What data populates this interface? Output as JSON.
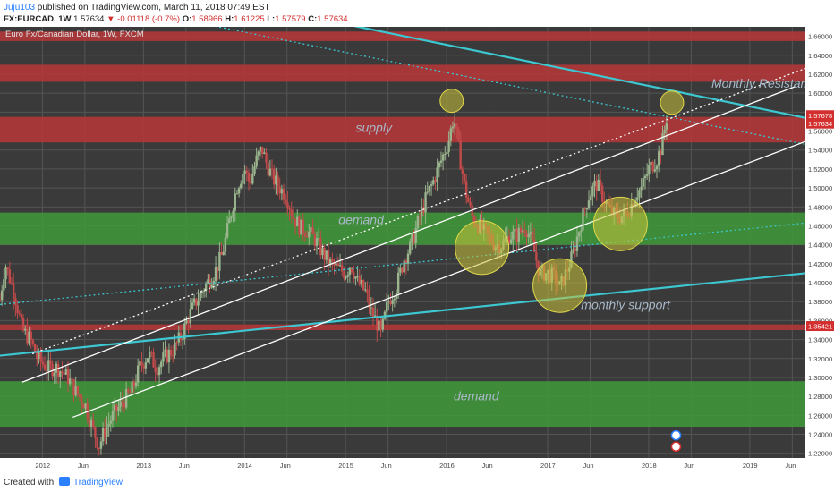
{
  "header": {
    "author": "Juju103",
    "published_text": " published on TradingView.com, March 11, 2018 07:49 EST",
    "symbol": "FX:EURCAD, 1W",
    "last": "1.57634",
    "change_arrow": "▼",
    "change": "-0.01118 (-0.7%)",
    "open_label": "O:",
    "open": "1.58966",
    "high_label": "H:",
    "high": "1.61225",
    "low_label": "L:",
    "low": "1.57579",
    "close_label": "C:",
    "close": "1.57634"
  },
  "chart_title": "Euro Fx/Canadian Dollar, 1W, FXCM",
  "footer": {
    "created_with": "Created with",
    "brand": "TradingView"
  },
  "colors": {
    "background": "#3a3a3a",
    "supply_zone": "#b8373a",
    "demand_zone": "#3f9b3a",
    "trendline": "#3cc7d1",
    "channel": "#ffffff",
    "candle_up": "#9ab58e",
    "candle_down": "#c24a4a",
    "circle": "#c9c23a"
  },
  "chart_data": {
    "type": "candlestick",
    "symbol": "FX:EURCAD",
    "timeframe": "1W",
    "ylim": [
      1.215,
      1.67
    ],
    "xlim": [
      2011.58,
      2019.55
    ],
    "y_ticks": [
      "1.66000",
      "1.64000",
      "1.62000",
      "1.60000",
      "1.58000",
      "1.56000",
      "1.54000",
      "1.52000",
      "1.50000",
      "1.48000",
      "1.46000",
      "1.44000",
      "1.42000",
      "1.40000",
      "1.38000",
      "1.36000",
      "1.34000",
      "1.32000",
      "1.30000",
      "1.28000",
      "1.26000",
      "1.24000",
      "1.22000"
    ],
    "x_ticks": [
      {
        "label": "2012",
        "t": 2012.0
      },
      {
        "label": "Jun",
        "t": 2012.42
      },
      {
        "label": "2013",
        "t": 2013.0
      },
      {
        "label": "Jun",
        "t": 2013.42
      },
      {
        "label": "2014",
        "t": 2014.0
      },
      {
        "label": "Jun",
        "t": 2014.42
      },
      {
        "label": "2015",
        "t": 2015.0
      },
      {
        "label": "Jun",
        "t": 2015.42
      },
      {
        "label": "2016",
        "t": 2016.0
      },
      {
        "label": "Jun",
        "t": 2016.42
      },
      {
        "label": "2017",
        "t": 2017.0
      },
      {
        "label": "Jun",
        "t": 2017.42
      },
      {
        "label": "2018",
        "t": 2018.0
      },
      {
        "label": "Jun",
        "t": 2018.42
      },
      {
        "label": "2019",
        "t": 2019.0
      },
      {
        "label": "Jun",
        "t": 2019.42
      }
    ],
    "price_labels": [
      {
        "value": "1.57678",
        "price": 1.57678,
        "color": "#d32f2f"
      },
      {
        "value": "1.57634",
        "price": 1.57634,
        "color": "#d32f2f"
      },
      {
        "value": "1.35421",
        "price": 1.35421,
        "color": "#d32f2f"
      }
    ],
    "zones": [
      {
        "type": "supply",
        "low": 1.655,
        "high": 1.665
      },
      {
        "type": "supply",
        "low": 1.612,
        "high": 1.63
      },
      {
        "type": "supply",
        "low": 1.548,
        "high": 1.575
      },
      {
        "type": "supply",
        "low": 1.35,
        "high": 1.356
      },
      {
        "type": "demand",
        "low": 1.44,
        "high": 1.474
      },
      {
        "type": "demand",
        "low": 1.248,
        "high": 1.296
      }
    ],
    "lines": [
      {
        "name": "descending-resistance",
        "t1": 2012.5,
        "p1": 1.727,
        "t2": 2019.55,
        "p2": 1.574,
        "style": "solid",
        "color": "#3cc7d1"
      },
      {
        "name": "ascending-support",
        "t1": 2011.58,
        "p1": 1.323,
        "t2": 2019.55,
        "p2": 1.41,
        "style": "solid",
        "color": "#3cc7d1"
      },
      {
        "name": "dotted-descending",
        "t1": 2011.58,
        "p1": 1.716,
        "t2": 2019.55,
        "p2": 1.546,
        "style": "dotted",
        "color": "#3cc7d1"
      },
      {
        "name": "dotted-ascending",
        "t1": 2011.58,
        "p1": 1.377,
        "t2": 2019.55,
        "p2": 1.463,
        "style": "dotted",
        "color": "#3cc7d1"
      },
      {
        "name": "channel-upper",
        "t1": 2011.8,
        "p1": 1.295,
        "t2": 2019.45,
        "p2": 1.607,
        "style": "solid",
        "color": "#ffffff"
      },
      {
        "name": "channel-lower",
        "t1": 2012.3,
        "p1": 1.258,
        "t2": 2019.55,
        "p2": 1.549,
        "style": "solid",
        "color": "#ffffff"
      },
      {
        "name": "channel-dotted",
        "t1": 2011.9,
        "p1": 1.325,
        "t2": 2019.55,
        "p2": 1.626,
        "style": "dotted",
        "color": "#ffffff"
      }
    ],
    "circles": [
      {
        "t": 2016.05,
        "p": 1.592
      },
      {
        "t": 2018.23,
        "p": 1.59
      },
      {
        "t": 2016.35,
        "p": 1.437
      },
      {
        "t": 2017.12,
        "p": 1.397
      },
      {
        "t": 2017.72,
        "p": 1.462
      }
    ],
    "annotations": [
      {
        "text": "Monthly Resistance",
        "t": 2018.62,
        "p": 1.606
      },
      {
        "text": "supply",
        "t": 2015.1,
        "p": 1.559
      },
      {
        "text": "demand",
        "t": 2014.93,
        "p": 1.462
      },
      {
        "text": "monthly support",
        "t": 2017.33,
        "p": 1.372
      },
      {
        "text": "demand",
        "t": 2016.07,
        "p": 1.276
      }
    ],
    "price_path": [
      [
        2011.58,
        1.382
      ],
      [
        2011.63,
        1.42
      ],
      [
        2011.72,
        1.39
      ],
      [
        2011.8,
        1.35
      ],
      [
        2011.88,
        1.34
      ],
      [
        2011.95,
        1.32
      ],
      [
        2012.05,
        1.31
      ],
      [
        2012.15,
        1.31
      ],
      [
        2012.25,
        1.3
      ],
      [
        2012.33,
        1.285
      ],
      [
        2012.42,
        1.272
      ],
      [
        2012.5,
        1.245
      ],
      [
        2012.56,
        1.228
      ],
      [
        2012.62,
        1.245
      ],
      [
        2012.7,
        1.26
      ],
      [
        2012.8,
        1.275
      ],
      [
        2012.88,
        1.285
      ],
      [
        2012.96,
        1.31
      ],
      [
        2013.05,
        1.325
      ],
      [
        2013.13,
        1.31
      ],
      [
        2013.2,
        1.32
      ],
      [
        2013.3,
        1.33
      ],
      [
        2013.38,
        1.345
      ],
      [
        2013.45,
        1.365
      ],
      [
        2013.52,
        1.38
      ],
      [
        2013.6,
        1.395
      ],
      [
        2013.7,
        1.41
      ],
      [
        2013.78,
        1.43
      ],
      [
        2013.85,
        1.465
      ],
      [
        2013.92,
        1.5
      ],
      [
        2014.0,
        1.52
      ],
      [
        2014.05,
        1.505
      ],
      [
        2014.12,
        1.53
      ],
      [
        2014.17,
        1.542
      ],
      [
        2014.22,
        1.525
      ],
      [
        2014.28,
        1.51
      ],
      [
        2014.35,
        1.5
      ],
      [
        2014.42,
        1.49
      ],
      [
        2014.48,
        1.47
      ],
      [
        2014.55,
        1.458
      ],
      [
        2014.62,
        1.455
      ],
      [
        2014.7,
        1.445
      ],
      [
        2014.78,
        1.43
      ],
      [
        2014.85,
        1.42
      ],
      [
        2014.92,
        1.415
      ],
      [
        2015.0,
        1.41
      ],
      [
        2015.05,
        1.42
      ],
      [
        2015.12,
        1.4
      ],
      [
        2015.2,
        1.39
      ],
      [
        2015.25,
        1.37
      ],
      [
        2015.3,
        1.36
      ],
      [
        2015.35,
        1.345
      ],
      [
        2015.42,
        1.38
      ],
      [
        2015.5,
        1.395
      ],
      [
        2015.58,
        1.425
      ],
      [
        2015.65,
        1.44
      ],
      [
        2015.72,
        1.465
      ],
      [
        2015.8,
        1.49
      ],
      [
        2015.88,
        1.51
      ],
      [
        2015.95,
        1.53
      ],
      [
        2016.02,
        1.55
      ],
      [
        2016.07,
        1.575
      ],
      [
        2016.12,
        1.54
      ],
      [
        2016.18,
        1.5
      ],
      [
        2016.25,
        1.47
      ],
      [
        2016.32,
        1.46
      ],
      [
        2016.4,
        1.45
      ],
      [
        2016.48,
        1.44
      ],
      [
        2016.55,
        1.44
      ],
      [
        2016.62,
        1.45
      ],
      [
        2016.7,
        1.45
      ],
      [
        2016.78,
        1.46
      ],
      [
        2016.85,
        1.44
      ],
      [
        2016.92,
        1.41
      ],
      [
        2017.0,
        1.41
      ],
      [
        2017.07,
        1.405
      ],
      [
        2017.12,
        1.395
      ],
      [
        2017.18,
        1.41
      ],
      [
        2017.25,
        1.43
      ],
      [
        2017.32,
        1.46
      ],
      [
        2017.4,
        1.49
      ],
      [
        2017.48,
        1.505
      ],
      [
        2017.55,
        1.49
      ],
      [
        2017.62,
        1.475
      ],
      [
        2017.68,
        1.47
      ],
      [
        2017.75,
        1.47
      ],
      [
        2017.82,
        1.48
      ],
      [
        2017.88,
        1.495
      ],
      [
        2017.93,
        1.5
      ],
      [
        2018.0,
        1.52
      ],
      [
        2018.08,
        1.53
      ],
      [
        2018.13,
        1.545
      ],
      [
        2018.18,
        1.576
      ]
    ]
  }
}
